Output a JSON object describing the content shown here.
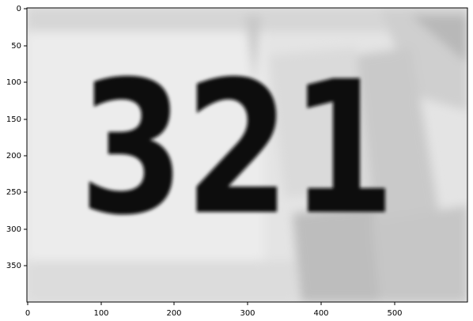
{
  "image": {
    "text": "321",
    "x_ticks": [
      "0",
      "100",
      "200",
      "300",
      "400",
      "500"
    ],
    "y_ticks": [
      "0",
      "50",
      "100",
      "150",
      "200",
      "250",
      "300",
      "350"
    ]
  }
}
